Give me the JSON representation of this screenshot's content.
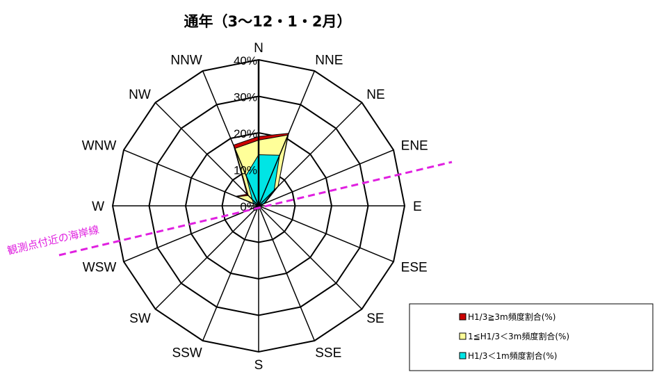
{
  "chart_data": {
    "type": "radar",
    "title": "通年（3～12・1・2月）",
    "directions": [
      "N",
      "NNE",
      "NE",
      "ENE",
      "E",
      "ESE",
      "SE",
      "SSE",
      "S",
      "SSW",
      "SW",
      "WSW",
      "W",
      "WNW",
      "NW",
      "NNW"
    ],
    "rmax": 40,
    "ticks": [
      0,
      10,
      20,
      30,
      40
    ],
    "tick_labels": [
      "0%",
      "10%",
      "20%",
      "30%",
      "40%"
    ],
    "stacked": true,
    "series": [
      {
        "name": "H1/3≧3m頻度割合(%)",
        "color": "#cc0000",
        "values": [
          1,
          0.5,
          0,
          0,
          0,
          0,
          0,
          0,
          0,
          0,
          0,
          0,
          0,
          0.3,
          0.5,
          1
        ]
      },
      {
        "name": "1≦H1/3＜3m頻度割合(%)",
        "color": "#ffff99",
        "values": [
          4,
          6,
          1.5,
          0.3,
          0,
          0,
          0,
          0,
          0,
          0,
          0,
          0,
          0,
          5,
          1.5,
          8
        ]
      },
      {
        "name": "H1/3＜1m頻度割合(%)",
        "color": "#00e5e5",
        "values": [
          14,
          15,
          6,
          1.5,
          0.5,
          0,
          0,
          0,
          0,
          0,
          0,
          0,
          0,
          1.5,
          2.5,
          9
        ]
      }
    ],
    "coastline_label": "観測点付近の海岸線",
    "coastline_color": "#e020e0"
  }
}
